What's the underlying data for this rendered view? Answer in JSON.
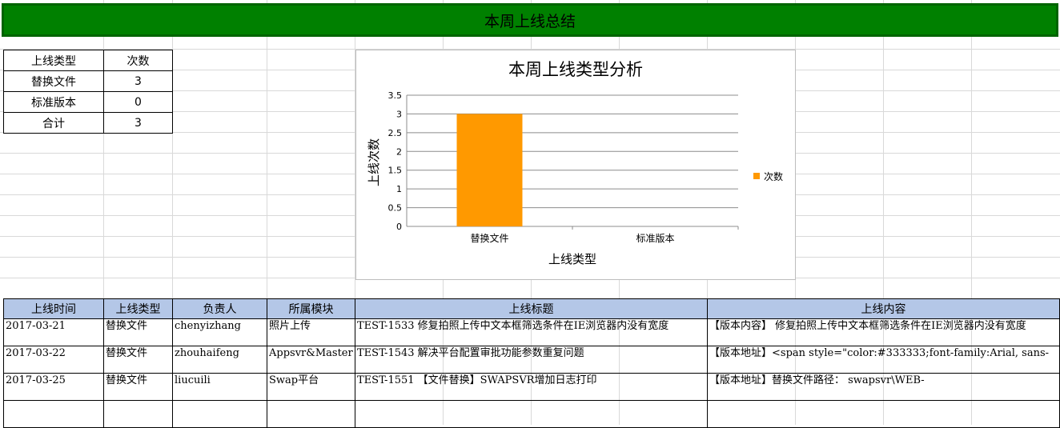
{
  "banner": {
    "title": "本周上线总结"
  },
  "summary": {
    "header": [
      "上线类型",
      "次数"
    ],
    "rows": [
      [
        "替换文件",
        "3"
      ],
      [
        "标准版本",
        "0"
      ],
      [
        "合计",
        "3"
      ]
    ]
  },
  "chart_data": {
    "type": "bar",
    "title": "本周上线类型分析",
    "xlabel": "上线类型",
    "ylabel": "上线次数",
    "categories": [
      "替换文件",
      "标准版本"
    ],
    "series": [
      {
        "name": "次数",
        "values": [
          3,
          0
        ],
        "color": "#ff9900"
      }
    ],
    "ylim": [
      0,
      3.5
    ],
    "yticks": [
      "0",
      "0.5",
      "1",
      "1.5",
      "2",
      "2.5",
      "3",
      "3.5"
    ],
    "grid": true,
    "legend": "right"
  },
  "detail": {
    "headers": [
      "上线时间",
      "上线类型",
      "负责人",
      "所属模块",
      "上线标题",
      "上线内容"
    ],
    "rows": [
      [
        "2017-03-21",
        "替换文件",
        "chenyizhang",
        "照片上传",
        "TEST-1533  修复拍照上传中文本框筛选条件在IE浏览器内没有宽度",
        "【版本内容】 修复拍照上传中文本框筛选条件在IE浏览器内没有宽度"
      ],
      [
        "2017-03-22",
        "替换文件",
        "zhouhaifeng",
        "Appsvr&Master",
        "TEST-1543  解决平台配置审批功能参数重复问题",
        "【版本地址】<span style=\"color:#333333;font-family:Arial, sans-"
      ],
      [
        "2017-03-25",
        "替换文件",
        "liucuili",
        "Swap平台",
        "TEST-1551  【文件替换】SWAPSVR增加日志打印",
        "【版本地址】替换文件路径： swapsvr\\WEB-"
      ]
    ]
  }
}
